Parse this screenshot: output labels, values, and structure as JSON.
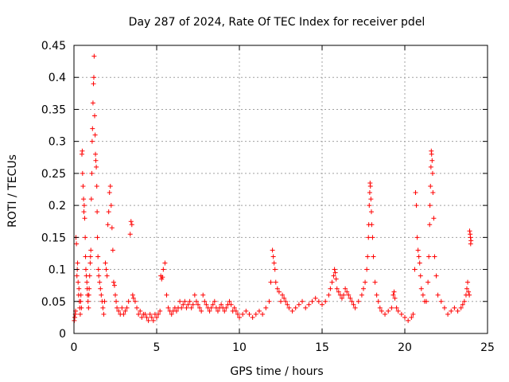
{
  "chart_data": {
    "type": "scatter",
    "title": "Day 287 of 2024, Rate Of TEC Index for receiver pdel",
    "xlabel": "GPS time / hours",
    "ylabel": "ROTI / TECUs",
    "xlim": [
      0,
      25
    ],
    "ylim": [
      0,
      0.45
    ],
    "xticks": [
      0,
      5,
      10,
      15,
      20,
      25
    ],
    "yticks": [
      0,
      0.05,
      0.1,
      0.15,
      0.2,
      0.25,
      0.3,
      0.35,
      0.4,
      0.45
    ],
    "xtick_labels": [
      "0",
      "5",
      "10",
      "15",
      "20",
      "25"
    ],
    "ytick_labels": [
      "0",
      "0.05",
      "0.1",
      "0.15",
      "0.2",
      "0.25",
      "0.3",
      "0.35",
      "0.4",
      "0.45"
    ],
    "grid": true,
    "marker": "+",
    "color": "#ff0000",
    "series": [
      {
        "x": [
          0.02,
          0.05,
          0.08,
          0.1,
          0.12,
          0.15,
          0.18,
          0.2,
          0.22,
          0.25,
          0.28,
          0.3,
          0.33,
          0.35,
          0.38,
          0.4,
          0.42,
          0.45,
          0.48,
          0.5,
          0.52,
          0.55,
          0.58,
          0.6,
          0.62,
          0.65,
          0.68,
          0.7,
          0.72,
          0.75,
          0.78,
          0.8,
          0.82,
          0.85,
          0.88,
          0.9,
          0.92,
          0.95,
          0.98,
          1.0,
          1.02,
          1.05,
          1.08,
          1.1,
          1.12,
          1.15,
          1.18,
          1.2,
          1.22,
          1.25,
          1.28,
          1.3,
          1.32,
          1.35,
          1.38,
          1.4,
          1.42,
          1.45,
          1.48,
          1.5,
          1.55,
          1.6,
          1.65,
          1.7,
          1.75,
          1.8,
          1.85,
          1.9,
          1.95,
          2.0,
          2.05,
          2.1,
          2.15,
          2.2,
          2.25,
          2.3,
          2.35,
          2.4,
          2.45,
          2.5,
          2.55,
          2.6,
          2.7,
          2.8,
          2.9,
          3.0,
          3.1,
          3.2,
          3.3,
          3.4,
          3.45,
          3.5,
          3.55,
          3.6,
          3.7,
          3.8,
          3.9,
          4.0,
          4.1,
          4.2,
          4.3,
          4.4,
          4.5,
          4.6,
          4.7,
          4.8,
          4.9,
          5.0,
          5.1,
          5.2,
          5.25,
          5.3,
          5.35,
          5.4,
          5.5,
          5.6,
          5.7,
          5.8,
          5.9,
          6.0,
          6.1,
          6.2,
          6.3,
          6.4,
          6.5,
          6.6,
          6.7,
          6.8,
          6.9,
          7.0,
          7.1,
          7.2,
          7.3,
          7.4,
          7.5,
          7.6,
          7.7,
          7.8,
          7.9,
          8.0,
          8.1,
          8.2,
          8.3,
          8.4,
          8.5,
          8.6,
          8.7,
          8.8,
          8.9,
          9.0,
          9.1,
          9.2,
          9.3,
          9.4,
          9.5,
          9.6,
          9.7,
          9.8,
          9.9,
          10.0,
          10.2,
          10.4,
          10.6,
          10.8,
          11.0,
          11.2,
          11.4,
          11.6,
          11.8,
          11.9,
          12.0,
          12.05,
          12.1,
          12.15,
          12.2,
          12.3,
          12.4,
          12.5,
          12.6,
          12.7,
          12.8,
          12.9,
          13.0,
          13.2,
          13.4,
          13.6,
          13.8,
          14.0,
          14.2,
          14.4,
          14.6,
          14.8,
          15.0,
          15.2,
          15.4,
          15.5,
          15.6,
          15.7,
          15.75,
          15.8,
          15.85,
          15.9,
          16.0,
          16.1,
          16.2,
          16.3,
          16.4,
          16.5,
          16.6,
          16.7,
          16.8,
          16.9,
          17.0,
          17.2,
          17.4,
          17.5,
          17.6,
          17.7,
          17.75,
          17.8,
          17.82,
          17.85,
          17.88,
          17.9,
          17.92,
          17.95,
          17.98,
          18.0,
          18.05,
          18.1,
          18.2,
          18.3,
          18.4,
          18.5,
          18.6,
          18.8,
          19.0,
          19.2,
          19.3,
          19.35,
          19.4,
          19.5,
          19.6,
          19.8,
          20.0,
          20.2,
          20.4,
          20.5,
          20.6,
          20.65,
          20.7,
          20.75,
          20.8,
          20.85,
          20.9,
          20.95,
          21.0,
          21.1,
          21.2,
          21.3,
          21.4,
          21.45,
          21.5,
          21.52,
          21.55,
          21.58,
          21.6,
          21.62,
          21.65,
          21.68,
          21.7,
          21.75,
          21.8,
          21.9,
          22.0,
          22.2,
          22.4,
          22.6,
          22.8,
          23.0,
          23.2,
          23.4,
          23.5,
          23.6,
          23.7,
          23.75,
          23.8,
          23.85,
          23.9,
          23.92,
          23.95,
          23.97,
          23.98,
          24.0
        ],
        "y": [
          0.02,
          0.025,
          0.03,
          0.035,
          0.15,
          0.14,
          0.09,
          0.1,
          0.11,
          0.08,
          0.06,
          0.07,
          0.05,
          0.04,
          0.03,
          0.05,
          0.06,
          0.04,
          0.28,
          0.285,
          0.25,
          0.23,
          0.21,
          0.19,
          0.2,
          0.18,
          0.15,
          0.12,
          0.1,
          0.09,
          0.08,
          0.07,
          0.06,
          0.05,
          0.04,
          0.06,
          0.07,
          0.09,
          0.11,
          0.12,
          0.13,
          0.21,
          0.25,
          0.3,
          0.32,
          0.36,
          0.39,
          0.4,
          0.433,
          0.34,
          0.31,
          0.28,
          0.27,
          0.26,
          0.23,
          0.19,
          0.15,
          0.12,
          0.1,
          0.09,
          0.08,
          0.07,
          0.06,
          0.05,
          0.04,
          0.03,
          0.05,
          0.11,
          0.1,
          0.09,
          0.17,
          0.19,
          0.22,
          0.23,
          0.2,
          0.165,
          0.13,
          0.08,
          0.075,
          0.06,
          0.05,
          0.04,
          0.035,
          0.03,
          0.04,
          0.03,
          0.035,
          0.04,
          0.05,
          0.155,
          0.175,
          0.17,
          0.06,
          0.055,
          0.05,
          0.04,
          0.03,
          0.035,
          0.025,
          0.03,
          0.03,
          0.025,
          0.02,
          0.03,
          0.025,
          0.02,
          0.03,
          0.025,
          0.03,
          0.035,
          0.09,
          0.085,
          0.088,
          0.1,
          0.11,
          0.06,
          0.04,
          0.035,
          0.03,
          0.035,
          0.04,
          0.035,
          0.04,
          0.05,
          0.04,
          0.045,
          0.05,
          0.04,
          0.045,
          0.05,
          0.04,
          0.045,
          0.06,
          0.05,
          0.045,
          0.04,
          0.035,
          0.06,
          0.05,
          0.045,
          0.04,
          0.035,
          0.04,
          0.045,
          0.05,
          0.04,
          0.035,
          0.04,
          0.045,
          0.04,
          0.035,
          0.04,
          0.045,
          0.05,
          0.045,
          0.035,
          0.04,
          0.035,
          0.03,
          0.025,
          0.03,
          0.035,
          0.03,
          0.025,
          0.03,
          0.035,
          0.03,
          0.04,
          0.05,
          0.08,
          0.13,
          0.12,
          0.11,
          0.1,
          0.08,
          0.07,
          0.065,
          0.05,
          0.06,
          0.055,
          0.05,
          0.045,
          0.04,
          0.035,
          0.04,
          0.045,
          0.05,
          0.04,
          0.045,
          0.05,
          0.055,
          0.05,
          0.045,
          0.05,
          0.06,
          0.07,
          0.08,
          0.09,
          0.1,
          0.095,
          0.085,
          0.07,
          0.065,
          0.06,
          0.055,
          0.06,
          0.07,
          0.065,
          0.06,
          0.055,
          0.05,
          0.045,
          0.04,
          0.05,
          0.06,
          0.07,
          0.08,
          0.1,
          0.12,
          0.15,
          0.17,
          0.2,
          0.22,
          0.235,
          0.23,
          0.21,
          0.19,
          0.17,
          0.15,
          0.12,
          0.08,
          0.06,
          0.05,
          0.04,
          0.035,
          0.03,
          0.035,
          0.04,
          0.06,
          0.065,
          0.055,
          0.04,
          0.035,
          0.03,
          0.025,
          0.02,
          0.025,
          0.03,
          0.1,
          0.22,
          0.2,
          0.15,
          0.13,
          0.12,
          0.11,
          0.09,
          0.07,
          0.06,
          0.05,
          0.05,
          0.08,
          0.12,
          0.17,
          0.2,
          0.23,
          0.26,
          0.285,
          0.28,
          0.27,
          0.25,
          0.22,
          0.18,
          0.12,
          0.09,
          0.06,
          0.05,
          0.04,
          0.03,
          0.035,
          0.04,
          0.035,
          0.04,
          0.045,
          0.05,
          0.06,
          0.07,
          0.08,
          0.065,
          0.06,
          0.16,
          0.155,
          0.15,
          0.14,
          0.145
        ]
      }
    ]
  }
}
